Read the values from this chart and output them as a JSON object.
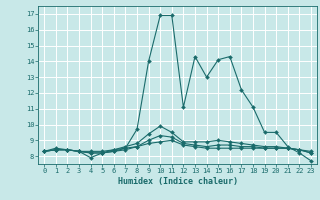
{
  "title": "",
  "xlabel": "Humidex (Indice chaleur)",
  "bg_color": "#c8e8e8",
  "line_color": "#1a6b6b",
  "grid_color": "#ffffff",
  "xlim": [
    -0.5,
    23.5
  ],
  "ylim": [
    7.5,
    17.5
  ],
  "xticks": [
    0,
    1,
    2,
    3,
    4,
    5,
    6,
    7,
    8,
    9,
    10,
    11,
    12,
    13,
    14,
    15,
    16,
    17,
    18,
    19,
    20,
    21,
    22,
    23
  ],
  "yticks": [
    8,
    9,
    10,
    11,
    12,
    13,
    14,
    15,
    16,
    17
  ],
  "lines": [
    {
      "x": [
        0,
        1,
        2,
        3,
        4,
        5,
        6,
        7,
        8,
        9,
        10,
        11,
        12,
        13,
        14,
        15,
        16,
        17,
        18,
        19,
        20,
        21,
        22,
        23
      ],
      "y": [
        8.3,
        8.5,
        8.4,
        8.3,
        7.9,
        8.2,
        8.3,
        8.5,
        9.7,
        14.0,
        16.9,
        16.9,
        11.1,
        14.3,
        13.0,
        14.1,
        14.3,
        12.2,
        11.1,
        9.5,
        9.5,
        8.6,
        8.2,
        7.7
      ]
    },
    {
      "x": [
        0,
        1,
        2,
        3,
        4,
        5,
        6,
        7,
        8,
        9,
        10,
        11,
        12,
        13,
        14,
        15,
        16,
        17,
        18,
        19,
        20,
        21,
        22,
        23
      ],
      "y": [
        8.3,
        8.4,
        8.4,
        8.3,
        8.3,
        8.3,
        8.4,
        8.5,
        8.6,
        8.8,
        8.9,
        9.0,
        8.7,
        8.6,
        8.5,
        8.5,
        8.5,
        8.5,
        8.5,
        8.5,
        8.5,
        8.5,
        8.4,
        8.3
      ]
    },
    {
      "x": [
        0,
        1,
        2,
        3,
        4,
        5,
        6,
        7,
        8,
        9,
        10,
        11,
        12,
        13,
        14,
        15,
        16,
        17,
        18,
        19,
        20,
        21,
        22,
        23
      ],
      "y": [
        8.3,
        8.4,
        8.4,
        8.3,
        8.2,
        8.2,
        8.3,
        8.4,
        8.6,
        9.0,
        9.3,
        9.2,
        8.8,
        8.7,
        8.6,
        8.7,
        8.7,
        8.6,
        8.6,
        8.5,
        8.5,
        8.5,
        8.4,
        8.2
      ]
    },
    {
      "x": [
        0,
        1,
        2,
        3,
        4,
        5,
        6,
        7,
        8,
        9,
        10,
        11,
        12,
        13,
        14,
        15,
        16,
        17,
        18,
        19,
        20,
        21,
        22,
        23
      ],
      "y": [
        8.3,
        8.4,
        8.4,
        8.3,
        8.2,
        8.2,
        8.4,
        8.6,
        8.8,
        9.4,
        9.9,
        9.5,
        8.9,
        8.9,
        8.9,
        9.0,
        8.9,
        8.8,
        8.7,
        8.6,
        8.6,
        8.5,
        8.4,
        8.2
      ]
    }
  ],
  "tick_fontsize": 5.0,
  "xlabel_fontsize": 6.0
}
